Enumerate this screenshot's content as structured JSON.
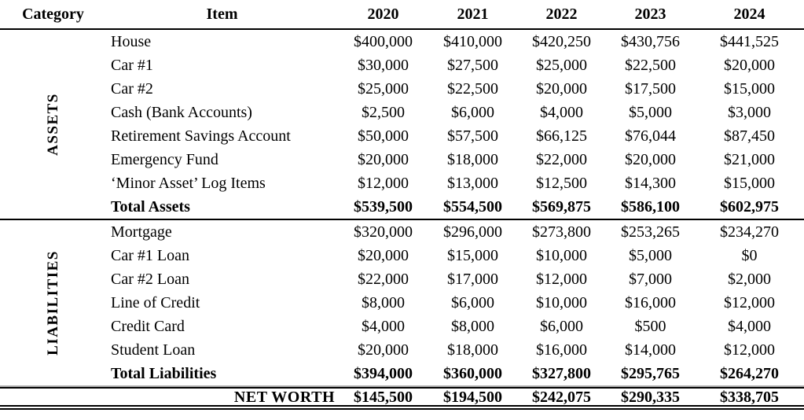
{
  "table": {
    "headers": {
      "category": "Category",
      "item": "Item",
      "years": [
        "2020",
        "2021",
        "2022",
        "2023",
        "2024"
      ]
    },
    "sections": [
      {
        "label": "ASSETS",
        "rows": [
          {
            "item": "House",
            "bold": false,
            "values": [
              "$400,000",
              "$410,000",
              "$420,250",
              "$430,756",
              "$441,525"
            ]
          },
          {
            "item": "Car #1",
            "bold": false,
            "values": [
              "$30,000",
              "$27,500",
              "$25,000",
              "$22,500",
              "$20,000"
            ]
          },
          {
            "item": "Car #2",
            "bold": false,
            "values": [
              "$25,000",
              "$22,500",
              "$20,000",
              "$17,500",
              "$15,000"
            ]
          },
          {
            "item": "Cash (Bank Accounts)",
            "bold": false,
            "values": [
              "$2,500",
              "$6,000",
              "$4,000",
              "$5,000",
              "$3,000"
            ]
          },
          {
            "item": "Retirement Savings Account",
            "bold": false,
            "values": [
              "$50,000",
              "$57,500",
              "$66,125",
              "$76,044",
              "$87,450"
            ]
          },
          {
            "item": "Emergency Fund",
            "bold": false,
            "values": [
              "$20,000",
              "$18,000",
              "$22,000",
              "$20,000",
              "$21,000"
            ]
          },
          {
            "item": "‘Minor Asset’ Log Items",
            "bold": false,
            "values": [
              "$12,000",
              "$13,000",
              "$12,500",
              "$14,300",
              "$15,000"
            ]
          },
          {
            "item": "Total Assets",
            "bold": true,
            "values": [
              "$539,500",
              "$554,500",
              "$569,875",
              "$586,100",
              "$602,975"
            ]
          }
        ]
      },
      {
        "label": "LIABILITIES",
        "rows": [
          {
            "item": "Mortgage",
            "bold": false,
            "values": [
              "$320,000",
              "$296,000",
              "$273,800",
              "$253,265",
              "$234,270"
            ]
          },
          {
            "item": "Car #1 Loan",
            "bold": false,
            "values": [
              "$20,000",
              "$15,000",
              "$10,000",
              "$5,000",
              "$0"
            ]
          },
          {
            "item": "Car #2 Loan",
            "bold": false,
            "values": [
              "$22,000",
              "$17,000",
              "$12,000",
              "$7,000",
              "$2,000"
            ]
          },
          {
            "item": "Line of Credit",
            "bold": false,
            "values": [
              "$8,000",
              "$6,000",
              "$10,000",
              "$16,000",
              "$12,000"
            ]
          },
          {
            "item": "Credit Card",
            "bold": false,
            "values": [
              "$4,000",
              "$8,000",
              "$6,000",
              "$500",
              "$4,000"
            ]
          },
          {
            "item": "Student Loan",
            "bold": false,
            "values": [
              "$20,000",
              "$18,000",
              "$16,000",
              "$14,000",
              "$12,000"
            ]
          },
          {
            "item": "Total Liabilities",
            "bold": true,
            "values": [
              "$394,000",
              "$360,000",
              "$327,800",
              "$295,765",
              "$264,270"
            ]
          }
        ]
      }
    ],
    "footer": {
      "label": "NET WORTH",
      "values": [
        "$145,500",
        "$194,500",
        "$242,075",
        "$290,335",
        "$338,705"
      ]
    }
  }
}
